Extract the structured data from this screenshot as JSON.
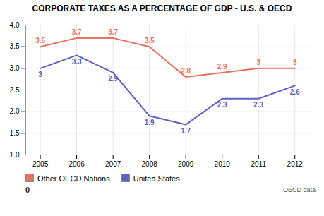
{
  "chart_data": {
    "type": "line",
    "title": "CORPORATE TAXES AS A PERCENTAGE OF GDP - U.S. & OECD",
    "x": [
      2005,
      2006,
      2007,
      2008,
      2009,
      2010,
      2011,
      2012
    ],
    "series": [
      {
        "name": "Other OECD Nations",
        "color": "#e87060",
        "values": [
          3.5,
          3.7,
          3.7,
          3.5,
          2.8,
          2.9,
          3.0,
          3.0
        ]
      },
      {
        "name": "United States",
        "color": "#6060c0",
        "values": [
          3.0,
          3.3,
          2.9,
          1.9,
          1.7,
          2.3,
          2.3,
          2.6
        ]
      }
    ],
    "xlim": [
      2004.6,
      2012.5
    ],
    "xticks": [
      2005,
      2006,
      2007,
      2008,
      2009,
      2010,
      2011,
      2012
    ],
    "ylim": [
      1.0,
      4.0
    ],
    "yticks": [
      {
        "value": 1.0,
        "label": "1.0"
      },
      {
        "value": 1.5,
        "label": "1.5"
      },
      {
        "value": 2.0,
        "label": "2.0"
      },
      {
        "value": 2.5,
        "label": "2.5"
      },
      {
        "value": 3.0,
        "label": "3.0"
      },
      {
        "value": 3.5,
        "label": "3.5"
      },
      {
        "value": 4.0,
        "label": "4.0"
      }
    ],
    "grid": true,
    "legend": "bottom",
    "data_labels": true,
    "annotations": [
      "0",
      "OECD data"
    ]
  }
}
